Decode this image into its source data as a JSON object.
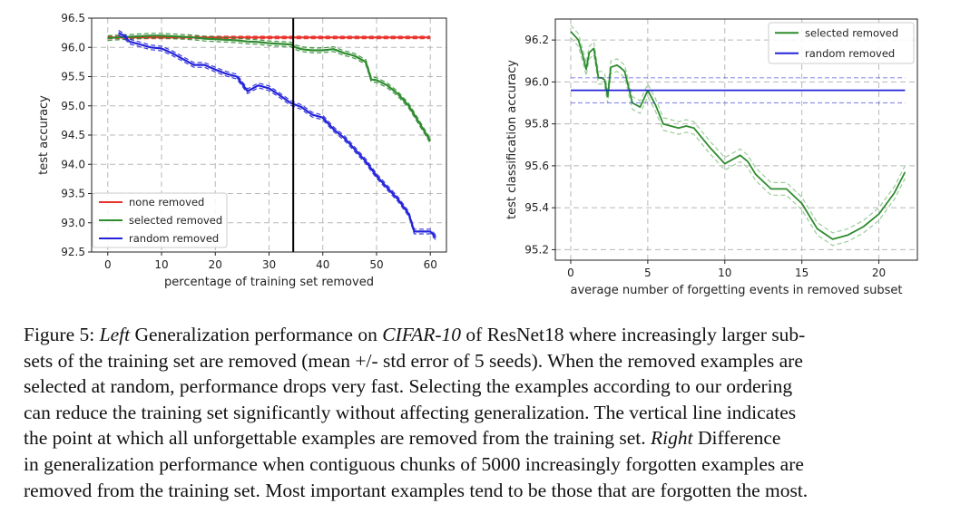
{
  "chart_data": [
    {
      "type": "line",
      "xlabel": "percentage of training set removed",
      "ylabel": "test accuracy",
      "xlim": [
        -3,
        63
      ],
      "ylim": [
        92.5,
        96.5
      ],
      "xticks": [
        "0",
        "10",
        "20",
        "30",
        "40",
        "50",
        "60"
      ],
      "yticks": [
        "92.5",
        "93.0",
        "93.5",
        "94.0",
        "94.5",
        "95.0",
        "95.5",
        "96.0",
        "96.5"
      ],
      "grid": true,
      "legend_position": "lower-left",
      "vertical_line_x": 34.5,
      "series": [
        {
          "name": "none removed",
          "color": "#e8312a",
          "x": [
            0,
            60
          ],
          "y": [
            96.17,
            96.17
          ],
          "std": 0.02
        },
        {
          "name": "selected removed",
          "color": "#2e8b2e",
          "x": [
            0,
            2,
            4,
            6,
            8,
            10,
            12,
            14,
            16,
            18,
            20,
            22,
            24,
            26,
            28,
            30,
            32,
            34,
            35,
            36,
            38,
            40,
            42,
            44,
            45,
            46,
            48,
            49,
            50,
            52,
            54,
            56,
            58,
            60
          ],
          "y": [
            96.16,
            96.17,
            96.18,
            96.19,
            96.2,
            96.2,
            96.19,
            96.18,
            96.17,
            96.15,
            96.14,
            96.13,
            96.12,
            96.1,
            96.09,
            96.07,
            96.06,
            96.05,
            96.0,
            95.97,
            95.95,
            95.95,
            95.97,
            95.9,
            95.88,
            95.85,
            95.75,
            95.45,
            95.44,
            95.35,
            95.2,
            95.0,
            94.7,
            94.4
          ],
          "std": 0.04
        },
        {
          "name": "random removed",
          "color": "#2323d9",
          "x": [
            2,
            3,
            4,
            6,
            8,
            10,
            12,
            14,
            16,
            18,
            20,
            22,
            24,
            26,
            28,
            30,
            32,
            34,
            36,
            38,
            40,
            42,
            44,
            46,
            48,
            50,
            52,
            54,
            56,
            57,
            58,
            60,
            61
          ],
          "y": [
            96.25,
            96.2,
            96.1,
            96.05,
            96.0,
            95.98,
            95.9,
            95.8,
            95.7,
            95.7,
            95.62,
            95.55,
            95.5,
            95.25,
            95.35,
            95.3,
            95.18,
            95.05,
            94.98,
            94.85,
            94.8,
            94.6,
            94.45,
            94.25,
            94.05,
            93.8,
            93.6,
            93.4,
            93.15,
            92.85,
            92.85,
            92.85,
            92.75
          ],
          "std": 0.04
        }
      ]
    },
    {
      "type": "line",
      "xlabel": "average number of forgetting events in removed subset",
      "ylabel": "test classification accuracy",
      "xlim": [
        -1,
        22.5
      ],
      "ylim": [
        95.15,
        96.3
      ],
      "xticks": [
        "0",
        "5",
        "10",
        "15",
        "20"
      ],
      "yticks": [
        "95.2",
        "95.4",
        "95.6",
        "95.8",
        "96.0",
        "96.2"
      ],
      "grid": true,
      "legend_position": "top-right",
      "series": [
        {
          "name": "selected removed",
          "color": "#2e8b2e",
          "x": [
            0,
            0.5,
            0.8,
            1.0,
            1.2,
            1.5,
            1.8,
            2.0,
            2.2,
            2.4,
            2.6,
            3.0,
            3.2,
            3.5,
            4.0,
            4.5,
            5.0,
            5.5,
            6.0,
            6.5,
            7.0,
            7.5,
            8.0,
            9.0,
            10.0,
            11.0,
            11.5,
            12.0,
            13.0,
            14.0,
            15.0,
            16.0,
            17.0,
            18.0,
            19.0,
            20.0,
            21.0,
            21.7
          ],
          "y": [
            96.24,
            96.2,
            96.12,
            96.06,
            96.14,
            96.16,
            96.02,
            96.02,
            96.01,
            95.93,
            96.07,
            96.08,
            96.07,
            96.05,
            95.9,
            95.88,
            95.96,
            95.89,
            95.8,
            95.79,
            95.78,
            95.79,
            95.78,
            95.69,
            95.61,
            95.65,
            95.62,
            95.56,
            95.49,
            95.49,
            95.42,
            95.3,
            95.25,
            95.27,
            95.31,
            95.37,
            95.47,
            95.57
          ],
          "std": 0.03
        },
        {
          "name": "random removed",
          "color": "#2323d9",
          "x": [
            0,
            21.7
          ],
          "y": [
            95.96,
            95.96
          ],
          "std": 0.06
        }
      ]
    }
  ],
  "caption": {
    "lines": [
      [
        "Figure 5: ",
        {
          "i": "Left"
        },
        " Generalization performance on ",
        {
          "i": "CIFAR-10"
        },
        " of ResNet18 where increasingly larger sub-"
      ],
      [
        "sets of the training set are removed (mean +/- std error of 5 seeds). When the removed examples are"
      ],
      [
        "selected at random, performance drops very fast. Selecting the examples according to our ordering"
      ],
      [
        "can reduce the training set significantly without affecting generalization. The vertical line indicates"
      ],
      [
        "the point at which all unforgettable examples are removed from the training set. ",
        {
          "i": "Right"
        },
        " Difference"
      ],
      [
        "in generalization performance when contiguous chunks of 5000 increasingly forgotten examples are"
      ],
      [
        "removed from the training set. Most important examples tend to be those that are forgotten the most."
      ]
    ]
  }
}
